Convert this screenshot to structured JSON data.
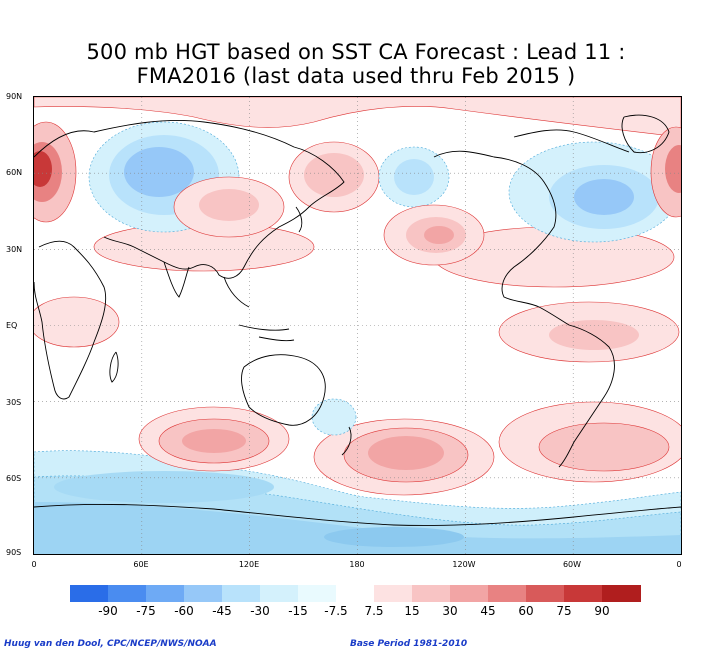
{
  "title_line1": "500 mb HGT based on SST CA Forecast : Lead 11 :",
  "title_line2": "FMA2016 (last data used thru Feb 2015 )",
  "lat_labels": [
    "90N",
    "60N",
    "30N",
    "EQ",
    "30S",
    "60S",
    "90S"
  ],
  "lon_labels": [
    "0",
    "60E",
    "120E",
    "180",
    "120W",
    "60W",
    "0"
  ],
  "colorbar": {
    "labels": [
      "-90",
      "-75",
      "-60",
      "-45",
      "-30",
      "-15",
      "-7.5",
      "7.5",
      "15",
      "30",
      "45",
      "60",
      "75",
      "90"
    ],
    "colors": [
      "#2a6de8",
      "#4a8cf0",
      "#6eaaf5",
      "#96c8f8",
      "#b8e2fb",
      "#d4f1fc",
      "#e9fafe",
      "#ffffff",
      "#fde2e2",
      "#f8c4c4",
      "#f2a5a5",
      "#e88282",
      "#d85a5a",
      "#c83838",
      "#b01e1e"
    ]
  },
  "footer_left": "Huug van den Dool, CPC/NCEP/NWS/NOAA",
  "footer_right": "Base Period 1981-2010"
}
